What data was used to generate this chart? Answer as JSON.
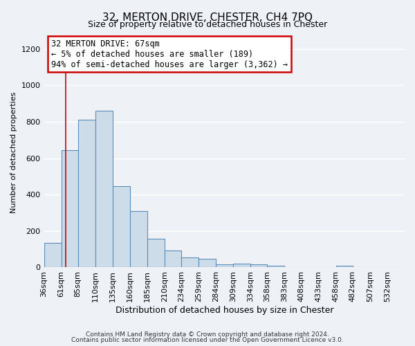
{
  "title": "32, MERTON DRIVE, CHESTER, CH4 7PQ",
  "subtitle": "Size of property relative to detached houses in Chester",
  "xlabel": "Distribution of detached houses by size in Chester",
  "ylabel": "Number of detached properties",
  "footer_line1": "Contains HM Land Registry data © Crown copyright and database right 2024.",
  "footer_line2": "Contains public sector information licensed under the Open Government Licence v3.0.",
  "bin_labels": [
    "36sqm",
    "61sqm",
    "85sqm",
    "110sqm",
    "135sqm",
    "160sqm",
    "185sqm",
    "210sqm",
    "234sqm",
    "259sqm",
    "284sqm",
    "309sqm",
    "334sqm",
    "358sqm",
    "383sqm",
    "408sqm",
    "433sqm",
    "458sqm",
    "482sqm",
    "507sqm",
    "532sqm"
  ],
  "bin_starts": [
    36,
    61,
    85,
    110,
    135,
    160,
    185,
    210,
    234,
    259,
    284,
    309,
    334,
    358,
    383,
    408,
    433,
    458,
    482,
    507,
    532
  ],
  "bar_values": [
    135,
    645,
    810,
    860,
    445,
    310,
    158,
    93,
    55,
    47,
    18,
    22,
    18,
    8,
    3,
    0,
    0,
    8,
    0,
    0,
    0
  ],
  "bar_color": "#ccdce8",
  "bar_edge_color": "#5b8db8",
  "ylim": [
    0,
    1260
  ],
  "yticks": [
    0,
    200,
    400,
    600,
    800,
    1000,
    1200
  ],
  "annotation_text_line1": "32 MERTON DRIVE: 67sqm",
  "annotation_text_line2": "← 5% of detached houses are smaller (189)",
  "annotation_text_line3": "94% of semi-detached houses are larger (3,362) →",
  "red_line_x": 67,
  "bg_color": "#eef2f7",
  "grid_color": "#ffffff",
  "annotation_box_color": "#ffffff",
  "annotation_box_edge_color": "#cc0000",
  "title_fontsize": 11,
  "subtitle_fontsize": 9,
  "xlabel_fontsize": 9,
  "ylabel_fontsize": 8,
  "tick_fontsize": 8,
  "annotation_fontsize": 8.5,
  "footer_fontsize": 6.5
}
